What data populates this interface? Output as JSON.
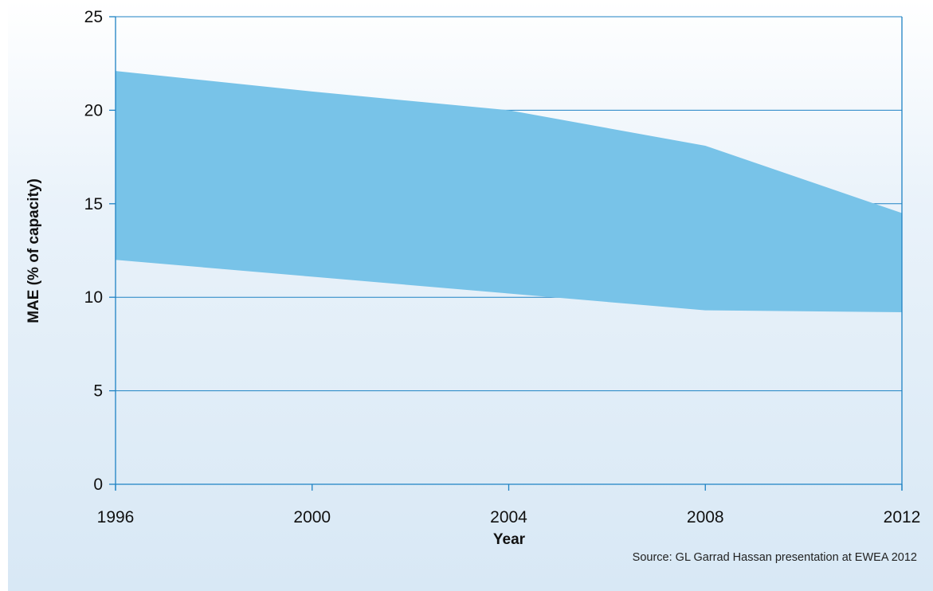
{
  "chart_data": {
    "type": "area",
    "x": [
      1996,
      2000,
      2004,
      2008,
      2012
    ],
    "series": [
      {
        "name": "",
        "role": "upper",
        "values": [
          22.1,
          21.0,
          20.0,
          18.1,
          14.5
        ]
      },
      {
        "name": "",
        "role": "lower",
        "values": [
          12.0,
          11.1,
          10.2,
          9.3,
          9.2
        ]
      }
    ],
    "xlabel": "Year",
    "ylabel": "MAE (% of capacity)",
    "xlim": [
      1996,
      2012
    ],
    "ylim": [
      0,
      25
    ],
    "xticks": [
      "1996",
      "2000",
      "2004",
      "2008",
      "2012"
    ],
    "yticks": [
      "0",
      "5",
      "10",
      "15",
      "20",
      "25"
    ],
    "grid": "horizontal",
    "fill_color": "#78c3e8",
    "axis_color": "#1e82c4",
    "source": "Source: GL Garrad Hassan presentation at EWEA 2012"
  }
}
